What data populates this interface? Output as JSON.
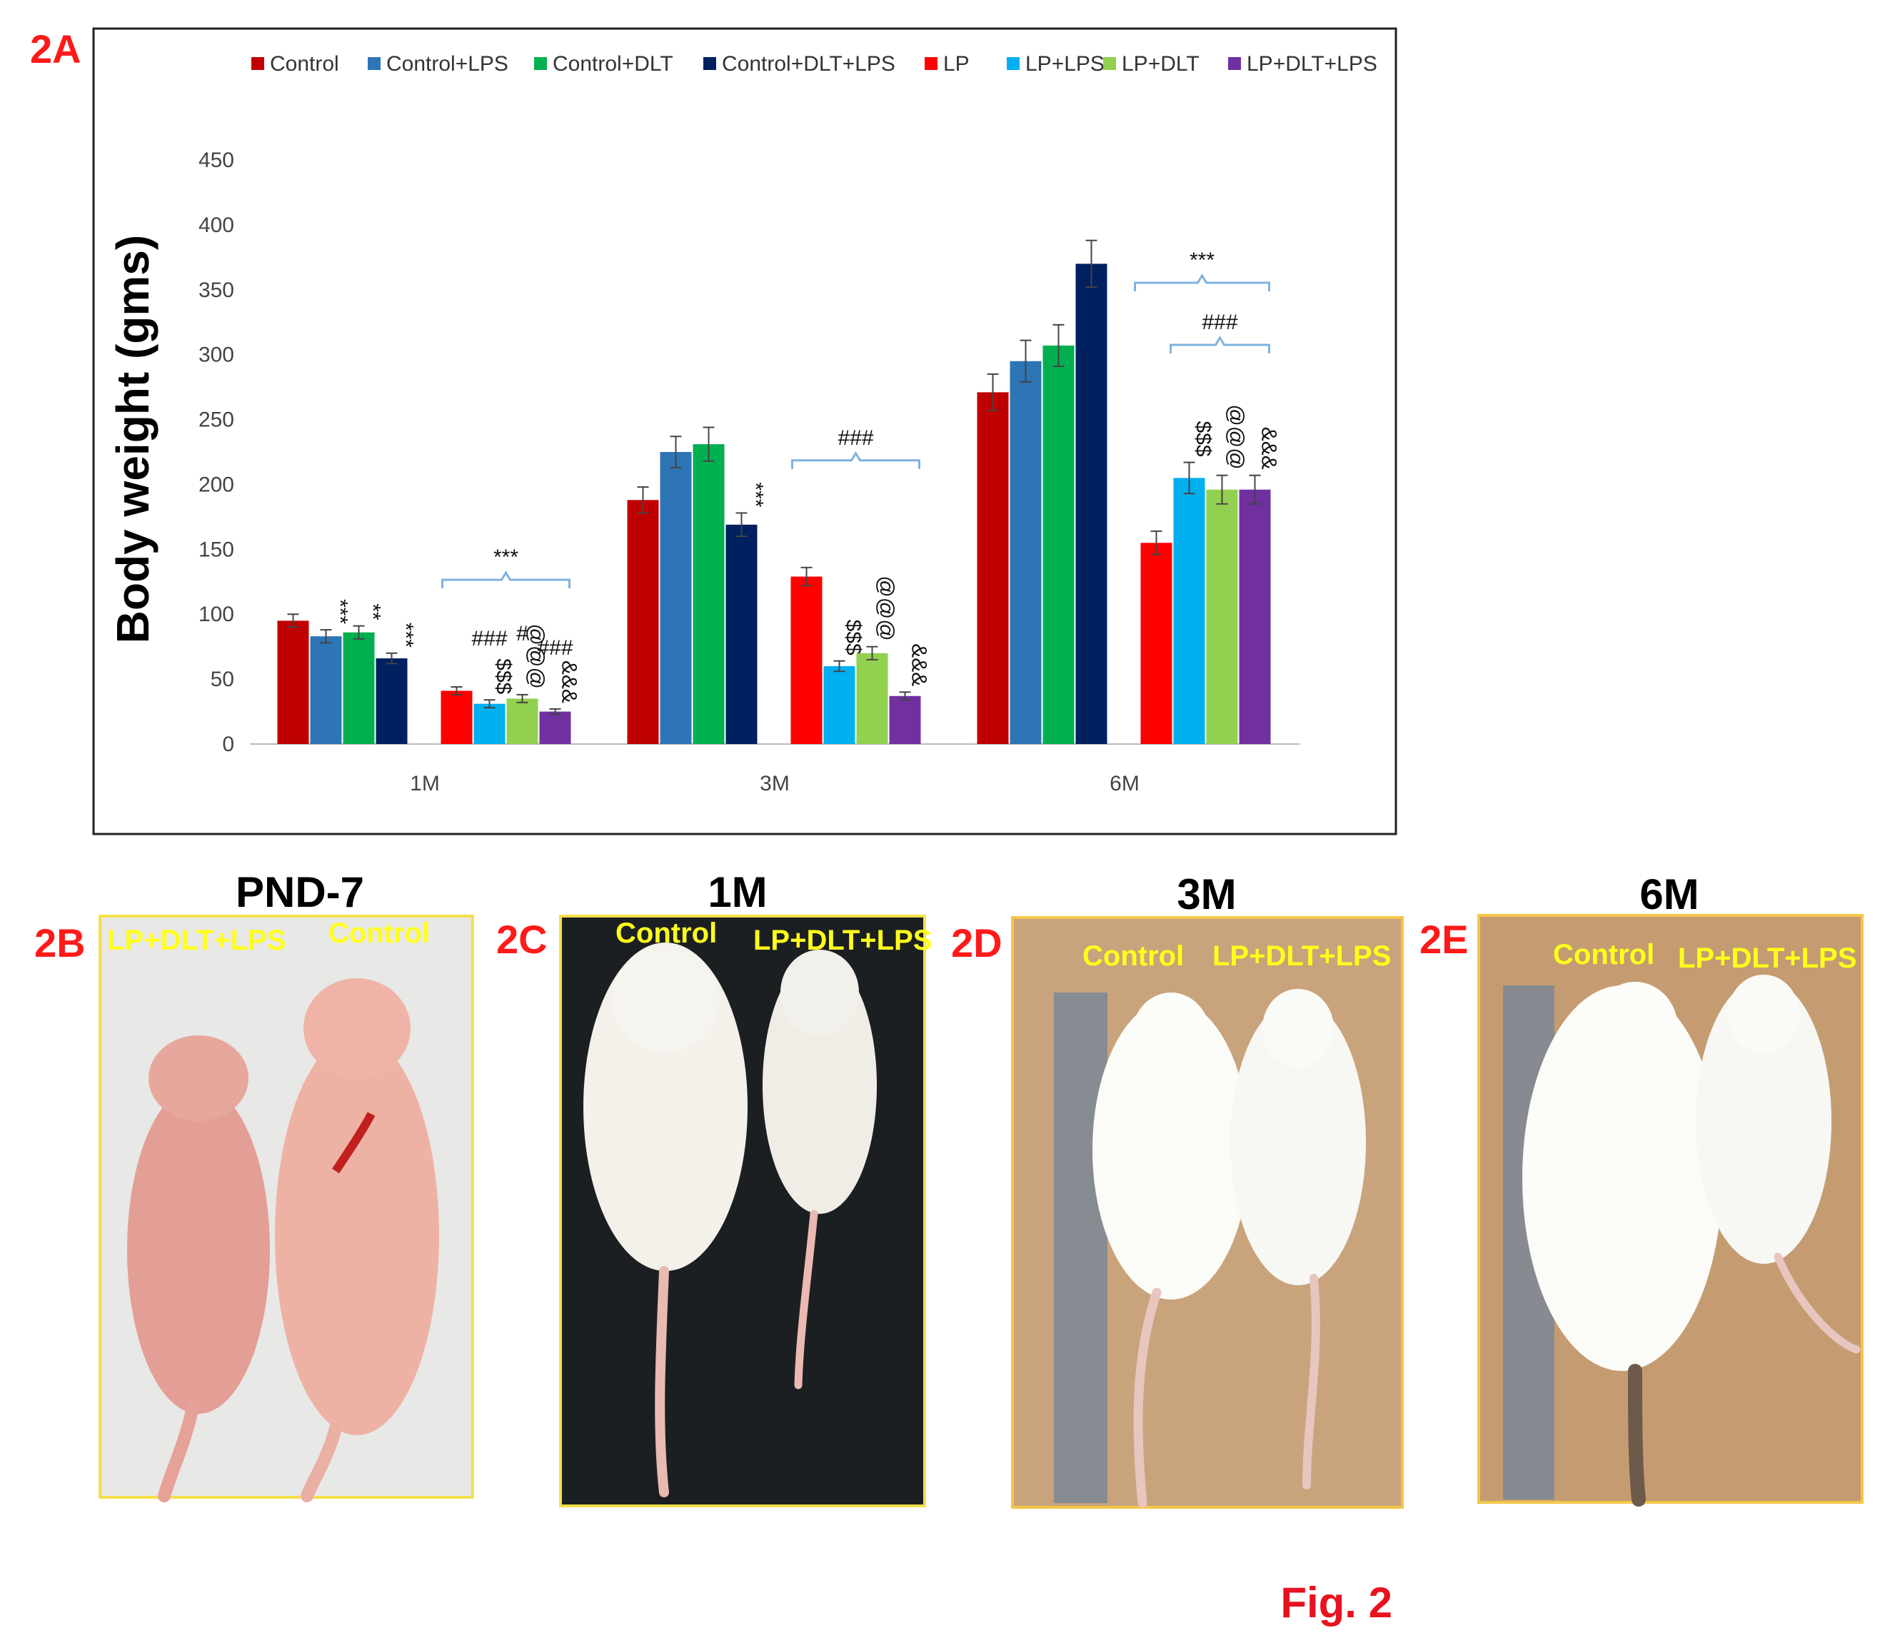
{
  "figure": {
    "caption": "Fig. 2",
    "panel_a_label": "2A"
  },
  "chart_data": {
    "type": "bar",
    "ylabel": "Body weight (gms)",
    "xlabel": "",
    "ylim": [
      0,
      450
    ],
    "yticks": [
      "0",
      "50",
      "100",
      "150",
      "200",
      "250",
      "300",
      "350",
      "400",
      "450"
    ],
    "categories": [
      "1M",
      "3M",
      "6M"
    ],
    "legend_position": "top",
    "series": [
      {
        "name": "Control",
        "color": "#c00000",
        "values": [
          95,
          188,
          271
        ],
        "errors": [
          5,
          10,
          14
        ],
        "annotations": [
          "",
          "",
          ""
        ]
      },
      {
        "name": "Control+LPS",
        "color": "#2e75b6",
        "values": [
          83,
          225,
          295
        ],
        "errors": [
          5,
          12,
          16
        ],
        "annotations": [
          "***",
          "",
          ""
        ]
      },
      {
        "name": "Control+DLT",
        "color": "#00b050",
        "values": [
          86,
          231,
          307
        ],
        "errors": [
          5,
          13,
          16
        ],
        "annotations": [
          "**",
          "",
          ""
        ]
      },
      {
        "name": "Control+DLT+LPS",
        "color": "#002060",
        "values": [
          66,
          169,
          370
        ],
        "errors": [
          4,
          9,
          18
        ],
        "annotations": [
          "***",
          "***",
          ""
        ]
      },
      {
        "name": "LP",
        "color": "#ff0000",
        "values": [
          41,
          129,
          155
        ],
        "errors": [
          3,
          7,
          9
        ],
        "annotations": [
          "",
          "",
          ""
        ]
      },
      {
        "name": "LP+LPS",
        "color": "#00b0f0",
        "values": [
          31,
          60,
          205
        ],
        "errors": [
          3,
          4,
          12
        ],
        "annotations": [
          "$$$",
          "$$$",
          "$$$"
        ]
      },
      {
        "name": "LP+DLT",
        "color": "#92d050",
        "values": [
          35,
          70,
          196
        ],
        "errors": [
          3,
          5,
          11
        ],
        "annotations": [
          "@@@",
          "@@@",
          "@@@"
        ]
      },
      {
        "name": "LP+DLT+LPS",
        "color": "#7030a0",
        "values": [
          25,
          37,
          196
        ],
        "errors": [
          2,
          3,
          11
        ],
        "annotations": [
          "&&&",
          "&&&",
          "&&&"
        ]
      }
    ],
    "extra_annotations": [
      {
        "category": "1M",
        "series": "LP+LPS",
        "text": "###"
      },
      {
        "category": "1M",
        "series": "LP+DLT",
        "text": "#"
      },
      {
        "category": "1M",
        "series": "LP+DLT+LPS",
        "text": "###"
      }
    ],
    "group_brackets": [
      {
        "category": "1M",
        "text": "***"
      },
      {
        "category": "3M",
        "text": "###"
      },
      {
        "category": "6M",
        "text": "***"
      },
      {
        "category": "6M",
        "text": "###"
      }
    ]
  },
  "photo_panels": [
    {
      "label": "2B",
      "title": "PND-7",
      "left_tag": "LP+DLT+LPS",
      "right_tag": "Control"
    },
    {
      "label": "2C",
      "title": "1M",
      "left_tag": "Control",
      "right_tag": "LP+DLT+LPS"
    },
    {
      "label": "2D",
      "title": "3M",
      "left_tag": "Control",
      "right_tag": "LP+DLT+LPS"
    },
    {
      "label": "2E",
      "title": "6M",
      "left_tag": "Control",
      "right_tag": "LP+DLT+LPS"
    }
  ]
}
